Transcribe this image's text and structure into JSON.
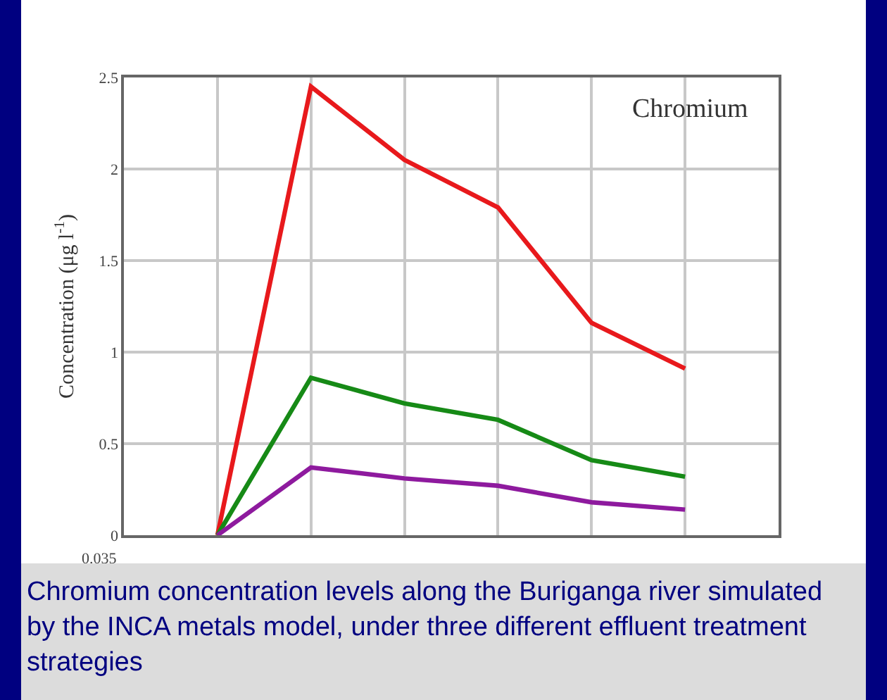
{
  "chart_data": {
    "type": "line",
    "ylabel": "Concentration (μg l$^{-1}$)",
    "categories": [
      null,
      null,
      null,
      null,
      null,
      null,
      null,
      null
    ],
    "series": [
      {
        "color": "#e8191c",
        "values": [
          null,
          0,
          2.45,
          2.05,
          1.79,
          1.16,
          0.91,
          null
        ]
      },
      {
        "color": "#168a16",
        "values": [
          null,
          0,
          0.86,
          0.72,
          0.63,
          0.41,
          0.32,
          null
        ]
      },
      {
        "color": "#8e1a9e",
        "values": [
          null,
          0,
          0.37,
          0.31,
          0.27,
          0.18,
          0.14,
          null
        ]
      }
    ],
    "ylim": [
      0,
      2.5
    ],
    "yticks": [
      0,
      0.5,
      1,
      1.5,
      2,
      2.5
    ],
    "grid": true,
    "marker": "none",
    "line_style": "solid",
    "tick_labels": "y",
    "annotations": [
      "Chromium",
      "0.035",
      "Chromium concentration levels along the Buriganga river simulated by the INCA metals model, under three different effluent treatment strategies"
    ]
  }
}
